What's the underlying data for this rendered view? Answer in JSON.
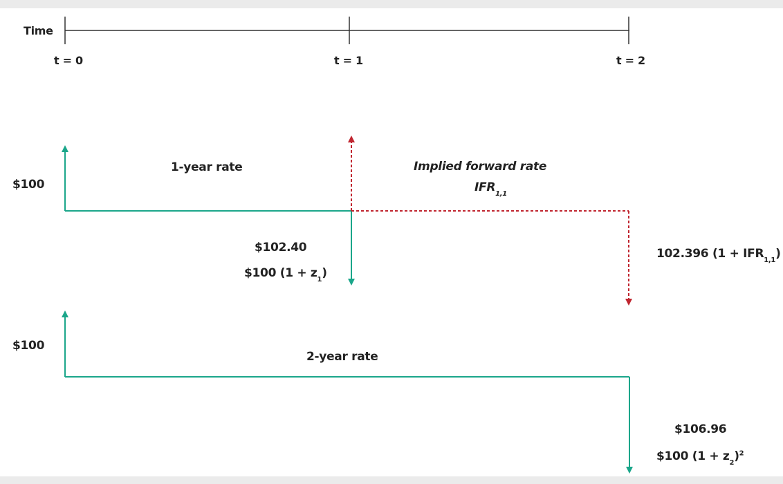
{
  "diagram": {
    "timeline": {
      "label": "Time",
      "ticks": [
        "t = 0",
        "t = 1",
        "t = 2"
      ]
    },
    "one_year": {
      "investment": "$100",
      "rate_label": "1-year rate",
      "value": "$102.40",
      "formula_main": "$100 (1 + z",
      "formula_sub": "1",
      "formula_end": ")"
    },
    "forward": {
      "rate_label": "Implied forward rate",
      "symbol_main": "IFR",
      "symbol_sub": "1,1",
      "formula_main": "102.396 (1 + IFR",
      "formula_sub": "1,1",
      "formula_end": ")"
    },
    "two_year": {
      "investment": "$100",
      "rate_label": "2-year rate",
      "value": "$106.96",
      "formula_main": "$100 (1 + z",
      "formula_sub": "2",
      "formula_end": ")",
      "formula_sup": "2"
    },
    "colors": {
      "spot": "#1aa68a",
      "forward": "#c0252f",
      "axis": "#333333"
    }
  }
}
